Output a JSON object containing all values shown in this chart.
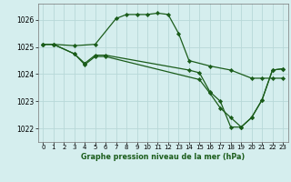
{
  "title": "Graphe pression niveau de la mer (hPa)",
  "bg_color": "#d5eeee",
  "grid_color": "#b8d8d8",
  "line_color": "#1a5c1a",
  "marker_color": "#1a5c1a",
  "xlim": [
    -0.5,
    23.5
  ],
  "ylim": [
    1021.5,
    1026.6
  ],
  "yticks": [
    1022,
    1023,
    1024,
    1025,
    1026
  ],
  "xticks": [
    0,
    1,
    2,
    3,
    4,
    5,
    6,
    7,
    8,
    9,
    10,
    11,
    12,
    13,
    14,
    15,
    16,
    17,
    18,
    19,
    20,
    21,
    22,
    23
  ],
  "series": [
    {
      "x": [
        0,
        1,
        3,
        5,
        7,
        8,
        9,
        10,
        11,
        12,
        13,
        14,
        16,
        18,
        20,
        21,
        22,
        23
      ],
      "y": [
        1025.1,
        1025.1,
        1025.05,
        1025.1,
        1026.05,
        1026.2,
        1026.2,
        1026.2,
        1026.25,
        1026.2,
        1025.5,
        1024.5,
        1024.3,
        1024.15,
        1023.85,
        1023.85,
        1023.85,
        1023.85
      ]
    },
    {
      "x": [
        0,
        1,
        3,
        4,
        5,
        6,
        14,
        15,
        16,
        17,
        18,
        19,
        20,
        21,
        22,
        23
      ],
      "y": [
        1025.1,
        1025.1,
        1024.75,
        1024.4,
        1024.7,
        1024.7,
        1024.15,
        1024.05,
        1023.35,
        1023.0,
        1022.05,
        1022.05,
        1022.4,
        1023.05,
        1024.15,
        1024.2
      ]
    },
    {
      "x": [
        0,
        1,
        3,
        4,
        5,
        6,
        15,
        16,
        17,
        18,
        19,
        20,
        21,
        22,
        23
      ],
      "y": [
        1025.1,
        1025.1,
        1024.75,
        1024.35,
        1024.65,
        1024.65,
        1023.8,
        1023.3,
        1022.75,
        1022.4,
        1022.05,
        1022.4,
        1023.05,
        1024.15,
        1024.2
      ]
    }
  ]
}
